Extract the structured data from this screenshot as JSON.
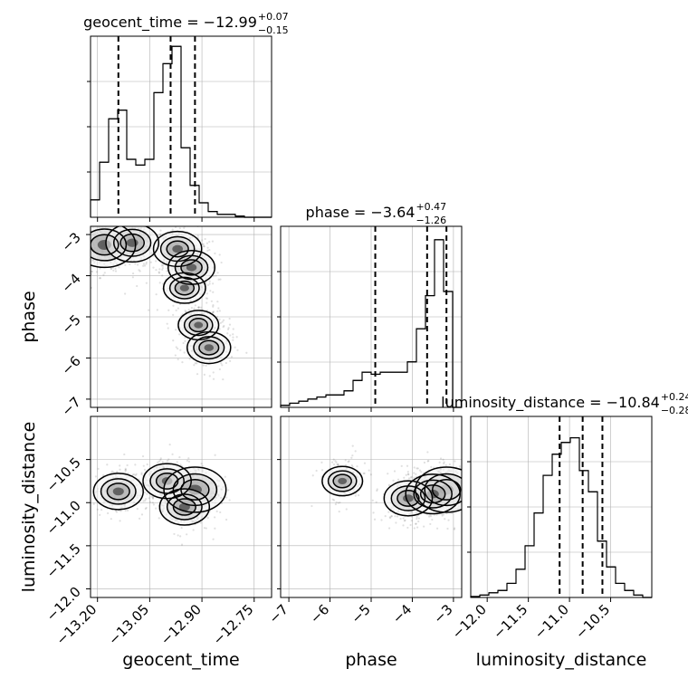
{
  "chart_data": {
    "type": "corner",
    "parameters": [
      "geocent_time",
      "phase",
      "luminosity_distance"
    ],
    "axis_labels": {
      "geocent_time": "geocent_time",
      "phase": "phase",
      "luminosity_distance": "luminosity_distance"
    },
    "grid": true,
    "diagonal": [
      {
        "parameter": "geocent_time",
        "title": "geocent_time = −12.99",
        "sup": "+0.07",
        "sub": "−0.15",
        "xlim": [
          -13.22,
          -12.7
        ],
        "ymax": 300,
        "hist_edges": [
          -13.22,
          -13.194,
          -13.168,
          -13.142,
          -13.116,
          -13.09,
          -13.064,
          -13.038,
          -13.012,
          -12.986,
          -12.96,
          -12.934,
          -12.908,
          -12.882,
          -12.856,
          -12.83,
          -12.804,
          -12.778,
          -12.752,
          -12.726,
          -12.7
        ],
        "hist_counts": [
          30,
          95,
          170,
          185,
          100,
          90,
          100,
          215,
          265,
          295,
          120,
          55,
          25,
          10,
          5,
          5,
          2,
          0,
          0,
          0
        ],
        "quantiles": [
          -13.14,
          -12.99,
          -12.92
        ]
      },
      {
        "parameter": "phase",
        "title": "phase = −3.64",
        "sup": "+0.47",
        "sub": "−1.26",
        "xlim": [
          -7.2,
          -2.8
        ],
        "ymax": 420,
        "hist_edges": [
          -7.2,
          -6.98,
          -6.76,
          -6.54,
          -6.32,
          -6.1,
          -5.88,
          -5.66,
          -5.44,
          -5.22,
          -5.0,
          -4.78,
          -4.56,
          -4.34,
          -4.12,
          -3.9,
          -3.68,
          -3.46,
          -3.24,
          -3.02,
          -2.8
        ],
        "hist_counts": [
          5,
          10,
          15,
          20,
          25,
          30,
          30,
          40,
          65,
          85,
          80,
          85,
          85,
          85,
          110,
          190,
          270,
          405,
          280,
          0
        ],
        "quantiles": [
          -4.9,
          -3.64,
          -3.17
        ]
      },
      {
        "parameter": "luminosity_distance",
        "title": "luminosity_distance = −10.84",
        "sup": "+0.24",
        "sub": "−0.28",
        "xlim": [
          -12.2,
          -10.0
        ],
        "ymax": 370,
        "hist_edges": [
          -12.2,
          -12.09,
          -11.98,
          -11.87,
          -11.76,
          -11.65,
          -11.54,
          -11.43,
          -11.32,
          -11.21,
          -11.1,
          -10.99,
          -10.88,
          -10.77,
          -10.66,
          -10.55,
          -10.44,
          -10.33,
          -10.22,
          -10.11,
          -10.0
        ],
        "hist_counts": [
          2,
          5,
          10,
          15,
          30,
          60,
          110,
          180,
          260,
          305,
          330,
          340,
          270,
          225,
          120,
          65,
          30,
          15,
          5,
          0
        ],
        "quantiles": [
          -11.12,
          -10.84,
          -10.6
        ]
      }
    ],
    "pairs": [
      {
        "x": "geocent_time",
        "y": "phase",
        "xlim": [
          -13.22,
          -12.7
        ],
        "ylim": [
          -7.2,
          -2.8
        ],
        "density_peaks": [
          {
            "x": -13.18,
            "y": -3.25,
            "weight": 1.0
          },
          {
            "x": -13.1,
            "y": -3.2,
            "weight": 0.7
          },
          {
            "x": -12.97,
            "y": -3.35,
            "weight": 0.55
          },
          {
            "x": -12.93,
            "y": -3.8,
            "weight": 0.5
          },
          {
            "x": -12.95,
            "y": -4.3,
            "weight": 0.35
          },
          {
            "x": -12.91,
            "y": -5.2,
            "weight": 0.3
          },
          {
            "x": -12.88,
            "y": -5.75,
            "weight": 0.4
          }
        ]
      },
      {
        "x": "geocent_time",
        "y": "luminosity_distance",
        "xlim": [
          -13.22,
          -12.7
        ],
        "ylim": [
          -12.1,
          -10.0
        ],
        "density_peaks": [
          {
            "x": -13.14,
            "y": -10.87,
            "weight": 0.6
          },
          {
            "x": -13.0,
            "y": -10.75,
            "weight": 0.55
          },
          {
            "x": -12.92,
            "y": -10.85,
            "weight": 1.0
          },
          {
            "x": -12.95,
            "y": -11.05,
            "weight": 0.6
          }
        ]
      },
      {
        "x": "phase",
        "y": "luminosity_distance",
        "xlim": [
          -7.2,
          -2.8
        ],
        "ylim": [
          -12.1,
          -10.0
        ],
        "density_peaks": [
          {
            "x": -3.17,
            "y": -10.85,
            "weight": 1.0
          },
          {
            "x": -3.5,
            "y": -10.9,
            "weight": 0.75
          },
          {
            "x": -4.1,
            "y": -10.95,
            "weight": 0.55
          },
          {
            "x": -5.7,
            "y": -10.75,
            "weight": 0.3
          }
        ]
      }
    ],
    "ticks": {
      "geocent_time": {
        "values": [
          -13.2,
          -13.05,
          -12.9,
          -12.75
        ],
        "labels": [
          "−13.20",
          "−13.05",
          "−12.90",
          "−12.75"
        ]
      },
      "phase": {
        "values": [
          -7,
          -6,
          -5,
          -4,
          -3
        ],
        "labels": [
          "−7",
          "−6",
          "−5",
          "−4",
          "−3"
        ]
      },
      "luminosity_distance": {
        "values": [
          -12.0,
          -11.5,
          -11.0,
          -10.5
        ],
        "labels": [
          "−12.0",
          "−11.5",
          "−11.0",
          "−10.5"
        ]
      }
    },
    "colors": {
      "line": "#000000",
      "grid": "#b0b0b0",
      "scatter": "#555555"
    }
  }
}
